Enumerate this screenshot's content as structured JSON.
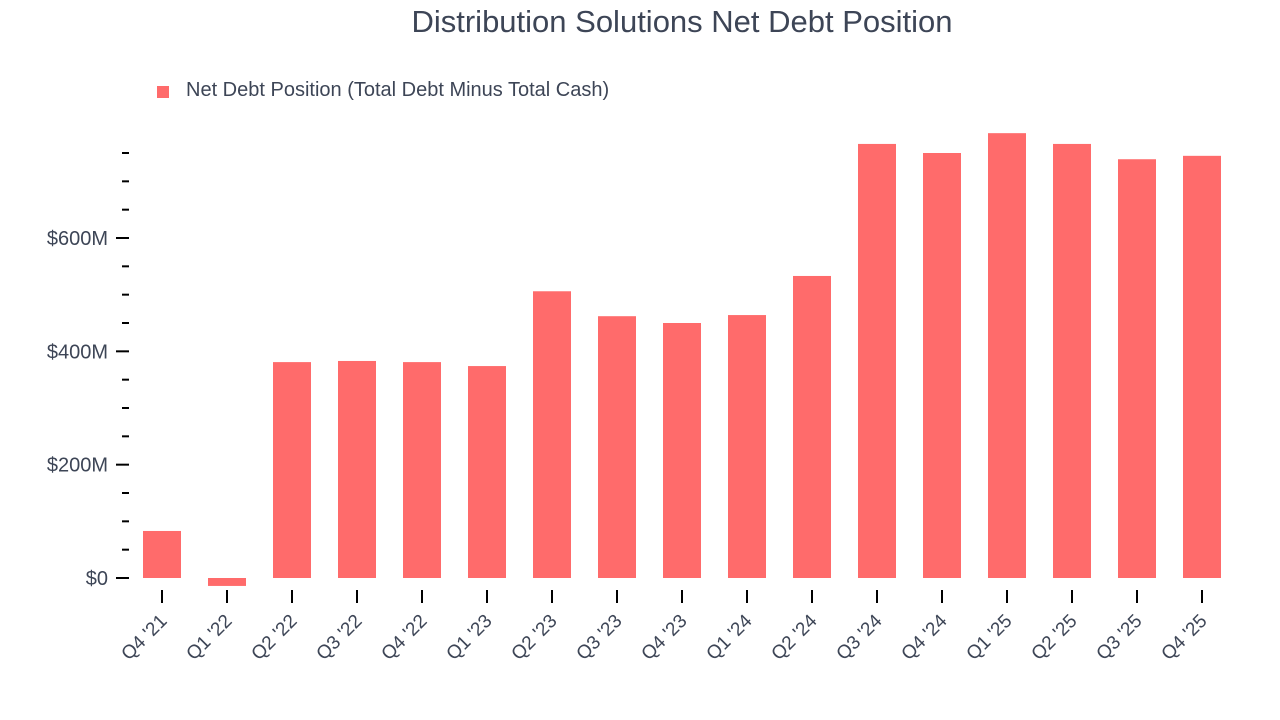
{
  "chart_data": {
    "type": "bar",
    "title": "Distribution Solutions Net Debt Position",
    "xlabel": "",
    "ylabel": "",
    "legend": [
      "Net Debt Position (Total Debt Minus Total Cash)"
    ],
    "legend_position": "top-left",
    "grid": false,
    "color": "#ff6b6b",
    "ylim": [
      -20,
      790
    ],
    "yticks": [
      0,
      200,
      400,
      600
    ],
    "ytick_labels": [
      "$0",
      "$200M",
      "$400M",
      "$600M"
    ],
    "categories": [
      "Q4 '21",
      "Q1 '22",
      "Q2 '22",
      "Q3 '22",
      "Q4 '22",
      "Q1 '23",
      "Q2 '23",
      "Q3 '23",
      "Q4 '23",
      "Q1 '24",
      "Q2 '24",
      "Q3 '24",
      "Q4 '24",
      "Q1 '25",
      "Q2 '25",
      "Q3 '25",
      "Q4 '25"
    ],
    "series": [
      {
        "name": "Net Debt Position (Total Debt Minus Total Cash)",
        "values": [
          83,
          -14,
          381,
          383,
          381,
          374,
          506,
          462,
          450,
          464,
          533,
          766,
          750,
          785,
          766,
          739,
          745
        ]
      }
    ],
    "units": "USD millions"
  }
}
